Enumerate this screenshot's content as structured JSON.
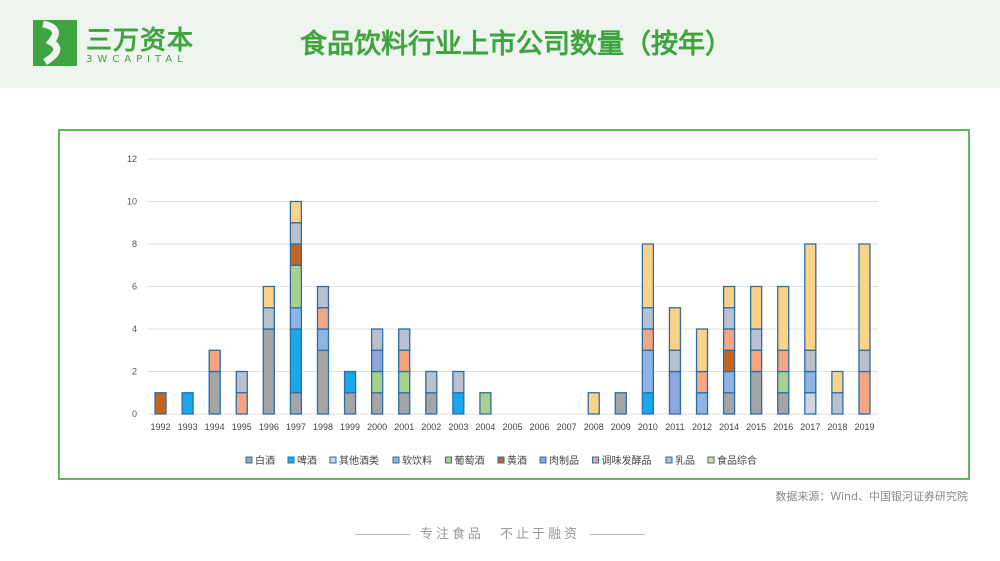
{
  "header": {
    "logo_cn": "三万资本",
    "logo_en": "3WCAPITAL",
    "title": "食品饮料行业上市公司数量（按年）"
  },
  "source": "数据来源：Wind、中国银河证券研究院",
  "footer": "专注食品　不止于融资",
  "chart_data": {
    "type": "bar",
    "stacked": true,
    "title": "",
    "xlabel": "",
    "ylabel": "",
    "ylim": [
      0,
      12
    ],
    "yticks": [
      0,
      2,
      4,
      6,
      8,
      10,
      12
    ],
    "grid": true,
    "legend": "bottom",
    "categories": [
      "1992",
      "1993",
      "1994",
      "1995",
      "1996",
      "1997",
      "1998",
      "1999",
      "2000",
      "2001",
      "2002",
      "2003",
      "2004",
      "2005",
      "2006",
      "2007",
      "2008",
      "2009",
      "2010",
      "2011",
      "2012",
      "2014",
      "2015",
      "2016",
      "2017",
      "2018",
      "2019"
    ],
    "series": [
      {
        "name": "白酒",
        "color": "#a5a5a5",
        "values": [
          0,
          0,
          2,
          0,
          4,
          1,
          3,
          1,
          1,
          1,
          1,
          0,
          0,
          0,
          0,
          0,
          0,
          1,
          0,
          0,
          0,
          1,
          2,
          1,
          0,
          0,
          0
        ]
      },
      {
        "name": "啤酒",
        "color": "#1aa7ec",
        "values": [
          0,
          1,
          0,
          0,
          0,
          3,
          0,
          1,
          0,
          0,
          0,
          1,
          0,
          0,
          0,
          0,
          0,
          0,
          1,
          0,
          0,
          0,
          0,
          0,
          0,
          0,
          0
        ]
      },
      {
        "name": "其他酒类",
        "color": "#cbd6e2",
        "values": [
          0,
          0,
          0,
          0,
          0,
          0,
          0,
          0,
          0,
          0,
          0,
          0,
          0,
          0,
          0,
          0,
          0,
          0,
          0,
          0,
          0,
          0,
          0,
          0,
          1,
          0,
          0
        ]
      },
      {
        "name": "软饮料",
        "color": "#8eb4e3",
        "values": [
          0,
          0,
          0,
          0,
          0,
          1,
          1,
          0,
          0,
          0,
          0,
          0,
          0,
          0,
          0,
          0,
          0,
          0,
          2,
          0,
          1,
          1,
          0,
          0,
          1,
          0,
          0
        ]
      },
      {
        "name": "葡萄酒",
        "color": "#a9d18e",
        "values": [
          0,
          0,
          0,
          0,
          0,
          2,
          0,
          0,
          1,
          1,
          0,
          0,
          1,
          0,
          0,
          0,
          0,
          0,
          0,
          0,
          0,
          0,
          0,
          1,
          0,
          0,
          0
        ]
      },
      {
        "name": "黄酒",
        "color": "#c5651b",
        "values": [
          1,
          0,
          0,
          0,
          0,
          1,
          0,
          0,
          0,
          0,
          0,
          0,
          0,
          0,
          0,
          0,
          0,
          0,
          0,
          0,
          0,
          1,
          0,
          0,
          0,
          0,
          0
        ]
      },
      {
        "name": "肉制品",
        "color": "#8fa5e0",
        "values": [
          0,
          0,
          0,
          0,
          0,
          0,
          0,
          0,
          1,
          0,
          0,
          0,
          0,
          0,
          0,
          0,
          0,
          0,
          0,
          2,
          0,
          0,
          0,
          0,
          0,
          0,
          0
        ]
      },
      {
        "name": "调味发酵品",
        "color": "#f4a582",
        "values": [
          0,
          0,
          1,
          1,
          0,
          0,
          1,
          0,
          0,
          1,
          0,
          0,
          0,
          0,
          0,
          0,
          0,
          0,
          1,
          0,
          1,
          1,
          1,
          1,
          0,
          0,
          2
        ]
      },
      {
        "name": "乳品",
        "color": "#b7c2cd",
        "values": [
          0,
          0,
          0,
          1,
          1,
          1,
          1,
          0,
          1,
          1,
          1,
          1,
          0,
          0,
          0,
          0,
          0,
          0,
          1,
          1,
          0,
          1,
          1,
          0,
          1,
          1,
          1
        ]
      },
      {
        "name": "食品综合",
        "color": "#fbd386",
        "values": [
          0,
          0,
          0,
          0,
          1,
          1,
          0,
          0,
          0,
          0,
          0,
          0,
          0,
          0,
          0,
          0,
          1,
          0,
          3,
          2,
          2,
          1,
          2,
          3,
          5,
          1,
          5
        ]
      }
    ]
  }
}
